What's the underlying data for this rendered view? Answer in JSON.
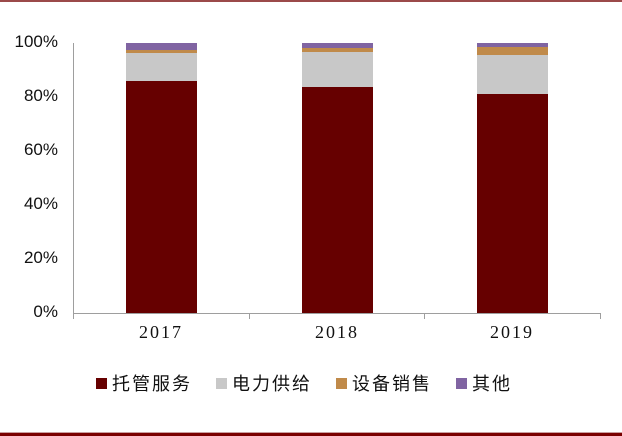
{
  "chart_data": {
    "type": "bar",
    "stacked": true,
    "percent": true,
    "title": "",
    "xlabel": "",
    "ylabel": "",
    "categories": [
      "2017",
      "2018",
      "2019"
    ],
    "series": [
      {
        "name": "托管服务",
        "color": "#660000",
        "values": [
          85.9,
          83.7,
          81.1
        ]
      },
      {
        "name": "电力供给",
        "color": "#c8c8c8",
        "values": [
          10.4,
          13.0,
          14.4
        ]
      },
      {
        "name": "设备销售",
        "color": "#c08a4a",
        "values": [
          1.1,
          1.5,
          3.0
        ]
      },
      {
        "name": "其他",
        "color": "#8064a2",
        "values": [
          2.6,
          1.8,
          1.5
        ]
      }
    ],
    "ylim": [
      0,
      100
    ],
    "yticks": [
      "0%",
      "20%",
      "40%",
      "60%",
      "80%",
      "100%"
    ],
    "grid": false,
    "legend_position": "bottom"
  },
  "legend": {
    "items": [
      {
        "label": "托管服务",
        "color": "#660000"
      },
      {
        "label": "电力供给",
        "color": "#c8c8c8"
      },
      {
        "label": "设备销售",
        "color": "#c08a4a"
      },
      {
        "label": "其他",
        "color": "#8064a2"
      }
    ]
  },
  "colors": {
    "frame_rule_top": "#9b4a4a",
    "frame_rule_bottom": "#7a0000",
    "axis": "#9e9e9e"
  }
}
